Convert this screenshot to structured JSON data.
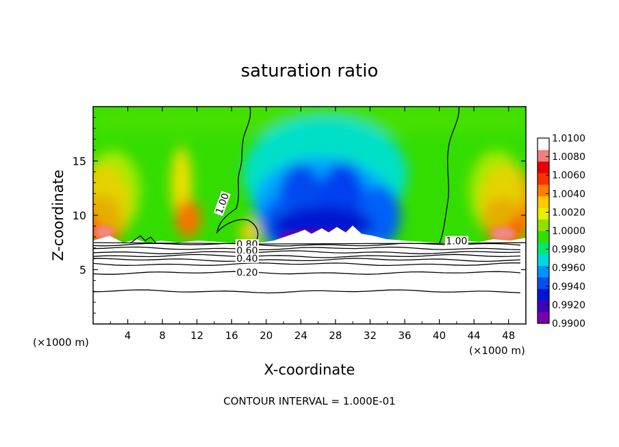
{
  "chart_data": {
    "type": "heatmap",
    "title": "saturation ratio",
    "xlabel": "X-coordinate",
    "ylabel": "Z-coordinate",
    "x_unit_label": "(×1000 m)",
    "x_unit_label_right": "(×1000 m)",
    "xlim": [
      0,
      50
    ],
    "ylim": [
      0,
      20
    ],
    "x_ticks": [
      4,
      8,
      12,
      16,
      20,
      24,
      28,
      32,
      36,
      40,
      44,
      48
    ],
    "x_tick_labels": [
      "4",
      "8",
      "12",
      "16",
      "20",
      "24",
      "28",
      "32",
      "36",
      "40",
      "44",
      "48"
    ],
    "y_ticks": [
      5,
      10,
      15
    ],
    "y_tick_labels": [
      "5",
      "10",
      "15"
    ],
    "colorbar": {
      "min": 0.99,
      "max": 1.01,
      "labels": [
        "1.0100",
        "1.0080",
        "1.0060",
        "1.0040",
        "1.0020",
        "1.0000",
        "0.9980",
        "0.9960",
        "0.9940",
        "0.9920",
        "0.9900"
      ],
      "colors": [
        "#7a00a8",
        "#3d00c0",
        "#0014d8",
        "#0050f0",
        "#0096ff",
        "#00d8e0",
        "#00e870",
        "#30e000",
        "#90e000",
        "#e8f000",
        "#ffc800",
        "#ff8000",
        "#ff3000",
        "#e80000",
        "#f08080",
        "#ffffff"
      ]
    },
    "contour_labels": [
      {
        "text": "1.00",
        "x": 15.2,
        "z": 11.0
      },
      {
        "text": "1.00",
        "x": 42.0,
        "z": 7.4
      },
      {
        "text": "0.80",
        "x": 17.8,
        "z": 7.1
      },
      {
        "text": "0.60",
        "x": 17.8,
        "z": 6.5
      },
      {
        "text": "0.40",
        "x": 17.8,
        "z": 5.8
      },
      {
        "text": "0.20",
        "x": 17.8,
        "z": 4.5
      }
    ],
    "contour_levels_below_cloud": [
      {
        "z": 7.3
      },
      {
        "z": 6.95
      },
      {
        "z": 6.6
      },
      {
        "z": 6.25
      },
      {
        "z": 5.9
      },
      {
        "z": 5.5
      },
      {
        "z": 4.7
      },
      {
        "z": 3.0
      }
    ],
    "footer": "CONTOUR INTERVAL =  1.000E-01"
  }
}
